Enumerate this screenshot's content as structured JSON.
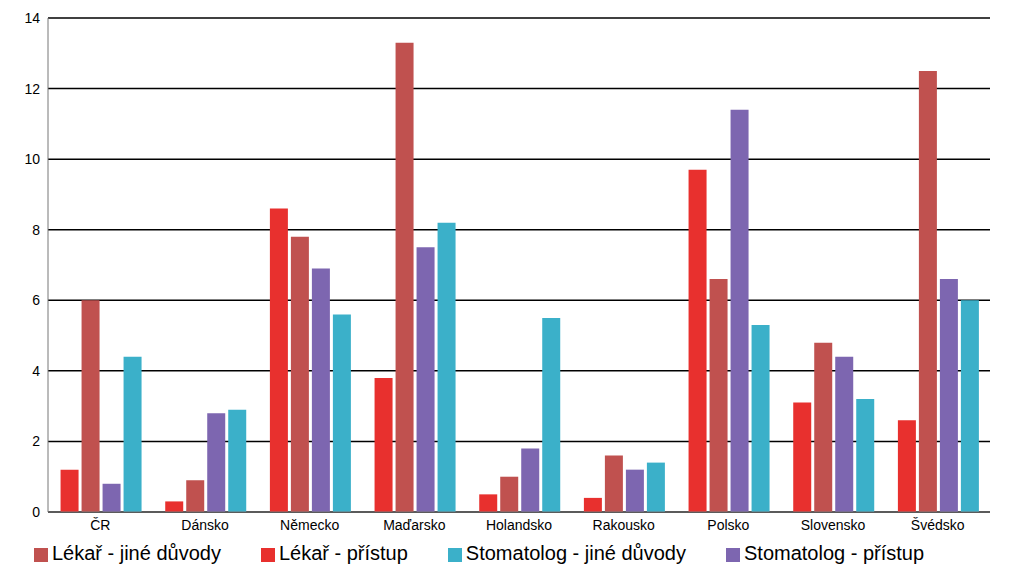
{
  "chart_data": {
    "type": "bar",
    "categories": [
      "ČR",
      "Dánsko",
      "Německo",
      "Maďarsko",
      "Holandsko",
      "Rakousko",
      "Polsko",
      "Slovensko",
      "Švédsko"
    ],
    "series": [
      {
        "name": "Lékař - přístup",
        "color": "#e8302e",
        "values": [
          1.2,
          0.3,
          8.6,
          3.8,
          0.5,
          0.4,
          9.7,
          3.1,
          2.6
        ]
      },
      {
        "name": "Lékař - jiné důvody",
        "color": "#c0514f",
        "values": [
          6.0,
          0.9,
          7.8,
          13.3,
          1.0,
          1.6,
          6.6,
          4.8,
          12.5
        ]
      },
      {
        "name": "Stomatolog - přístup",
        "color": "#7d66b0",
        "values": [
          0.8,
          2.8,
          6.9,
          7.5,
          1.8,
          1.2,
          11.4,
          4.4,
          6.6
        ]
      },
      {
        "name": "Stomatolog - jiné důvody",
        "color": "#3bb0c9",
        "values": [
          4.4,
          2.9,
          5.6,
          8.2,
          5.5,
          1.4,
          5.3,
          3.2,
          6.0
        ]
      }
    ],
    "ylim": [
      0,
      14
    ],
    "yticks": [
      0,
      2,
      4,
      6,
      8,
      10,
      12,
      14
    ],
    "grid": true,
    "legend": "bottom"
  }
}
